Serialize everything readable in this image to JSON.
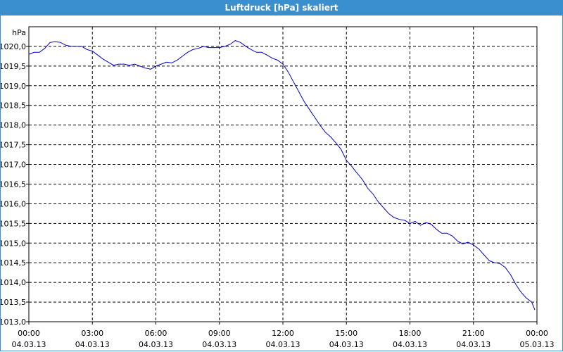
{
  "window": {
    "title": "Luftdruck [hPa] skaliert"
  },
  "chart_data": {
    "type": "line",
    "title": "Luftdruck [hPa] skaliert",
    "ylabel": "hPa",
    "xlabel": "",
    "x_unit": "hours since 00:00 04.03.13",
    "xlim": [
      0,
      24
    ],
    "ylim": [
      1013.0,
      1020.5
    ],
    "grid": true,
    "legend": "none",
    "y_ticks": [
      "1013,0",
      "1013,5",
      "1014,0",
      "1014,5",
      "1015,0",
      "1015,5",
      "1016,0",
      "1016,5",
      "1017,0",
      "1017,5",
      "1018,0",
      "1018,5",
      "1019,0",
      "1019,5",
      "1020,0"
    ],
    "y_tick_values": [
      1013.0,
      1013.5,
      1014.0,
      1014.5,
      1015.0,
      1015.5,
      1016.0,
      1016.5,
      1017.0,
      1017.5,
      1018.0,
      1018.5,
      1019.0,
      1019.5,
      1020.0
    ],
    "x_ticks": [
      {
        "time": "00:00",
        "date": "04.03.13"
      },
      {
        "time": "03:00",
        "date": "04.03.13"
      },
      {
        "time": "06:00",
        "date": "04.03.13"
      },
      {
        "time": "09:00",
        "date": "04.03.13"
      },
      {
        "time": "12:00",
        "date": "04.03.13"
      },
      {
        "time": "15:00",
        "date": "04.03.13"
      },
      {
        "time": "18:00",
        "date": "04.03.13"
      },
      {
        "time": "21:00",
        "date": "04.03.13"
      },
      {
        "time": "00:00",
        "date": "05.03.13"
      }
    ],
    "x_tick_values": [
      0,
      3,
      6,
      9,
      12,
      15,
      18,
      21,
      24
    ],
    "series": [
      {
        "color": "#0000cc",
        "x": [
          0,
          0.25,
          0.5,
          0.75,
          1.0,
          1.25,
          1.5,
          1.75,
          2.0,
          2.25,
          2.5,
          2.75,
          3.0,
          3.25,
          3.5,
          3.75,
          4.0,
          4.25,
          4.5,
          4.75,
          5.0,
          5.25,
          5.5,
          5.75,
          6.0,
          6.25,
          6.5,
          6.75,
          7.0,
          7.25,
          7.5,
          7.75,
          8.0,
          8.25,
          8.5,
          8.75,
          9.0,
          9.25,
          9.5,
          9.75,
          10.0,
          10.25,
          10.5,
          10.75,
          11.0,
          11.25,
          11.5,
          11.75,
          12.0,
          12.25,
          12.5,
          12.75,
          13.0,
          13.25,
          13.5,
          13.75,
          14.0,
          14.25,
          14.5,
          14.75,
          15.0,
          15.25,
          15.5,
          15.75,
          16.0,
          16.25,
          16.5,
          16.75,
          17.0,
          17.25,
          17.5,
          17.75,
          18.0,
          18.25,
          18.5,
          18.75,
          19.0,
          19.25,
          19.5,
          19.75,
          20.0,
          20.25,
          20.5,
          20.75,
          21.0,
          21.25,
          21.5,
          21.75,
          22.0,
          22.25,
          22.5,
          22.75,
          23.0,
          23.25,
          23.5,
          23.75,
          23.9
        ],
        "y": [
          1019.8,
          1019.85,
          1019.85,
          1019.95,
          1020.1,
          1020.12,
          1020.1,
          1020.03,
          1020.0,
          1020.0,
          1020.0,
          1019.92,
          1019.88,
          1019.78,
          1019.68,
          1019.6,
          1019.52,
          1019.55,
          1019.55,
          1019.52,
          1019.55,
          1019.5,
          1019.45,
          1019.42,
          1019.5,
          1019.55,
          1019.6,
          1019.58,
          1019.65,
          1019.75,
          1019.85,
          1019.92,
          1019.95,
          1020.0,
          1019.97,
          1019.97,
          1019.97,
          1020.0,
          1020.05,
          1020.15,
          1020.1,
          1020.0,
          1019.92,
          1019.85,
          1019.85,
          1019.78,
          1019.7,
          1019.65,
          1019.55,
          1019.35,
          1019.1,
          1018.85,
          1018.6,
          1018.4,
          1018.2,
          1018.0,
          1017.82,
          1017.7,
          1017.55,
          1017.38,
          1017.1,
          1016.95,
          1016.78,
          1016.62,
          1016.4,
          1016.25,
          1016.05,
          1015.9,
          1015.75,
          1015.65,
          1015.6,
          1015.58,
          1015.5,
          1015.55,
          1015.45,
          1015.52,
          1015.48,
          1015.35,
          1015.25,
          1015.25,
          1015.18,
          1015.05,
          1014.98,
          1015.02,
          1014.95,
          1014.85,
          1014.7,
          1014.55,
          1014.5,
          1014.48,
          1014.38,
          1014.2,
          1013.95,
          1013.75,
          1013.6,
          1013.5,
          1013.3
        ]
      }
    ]
  }
}
